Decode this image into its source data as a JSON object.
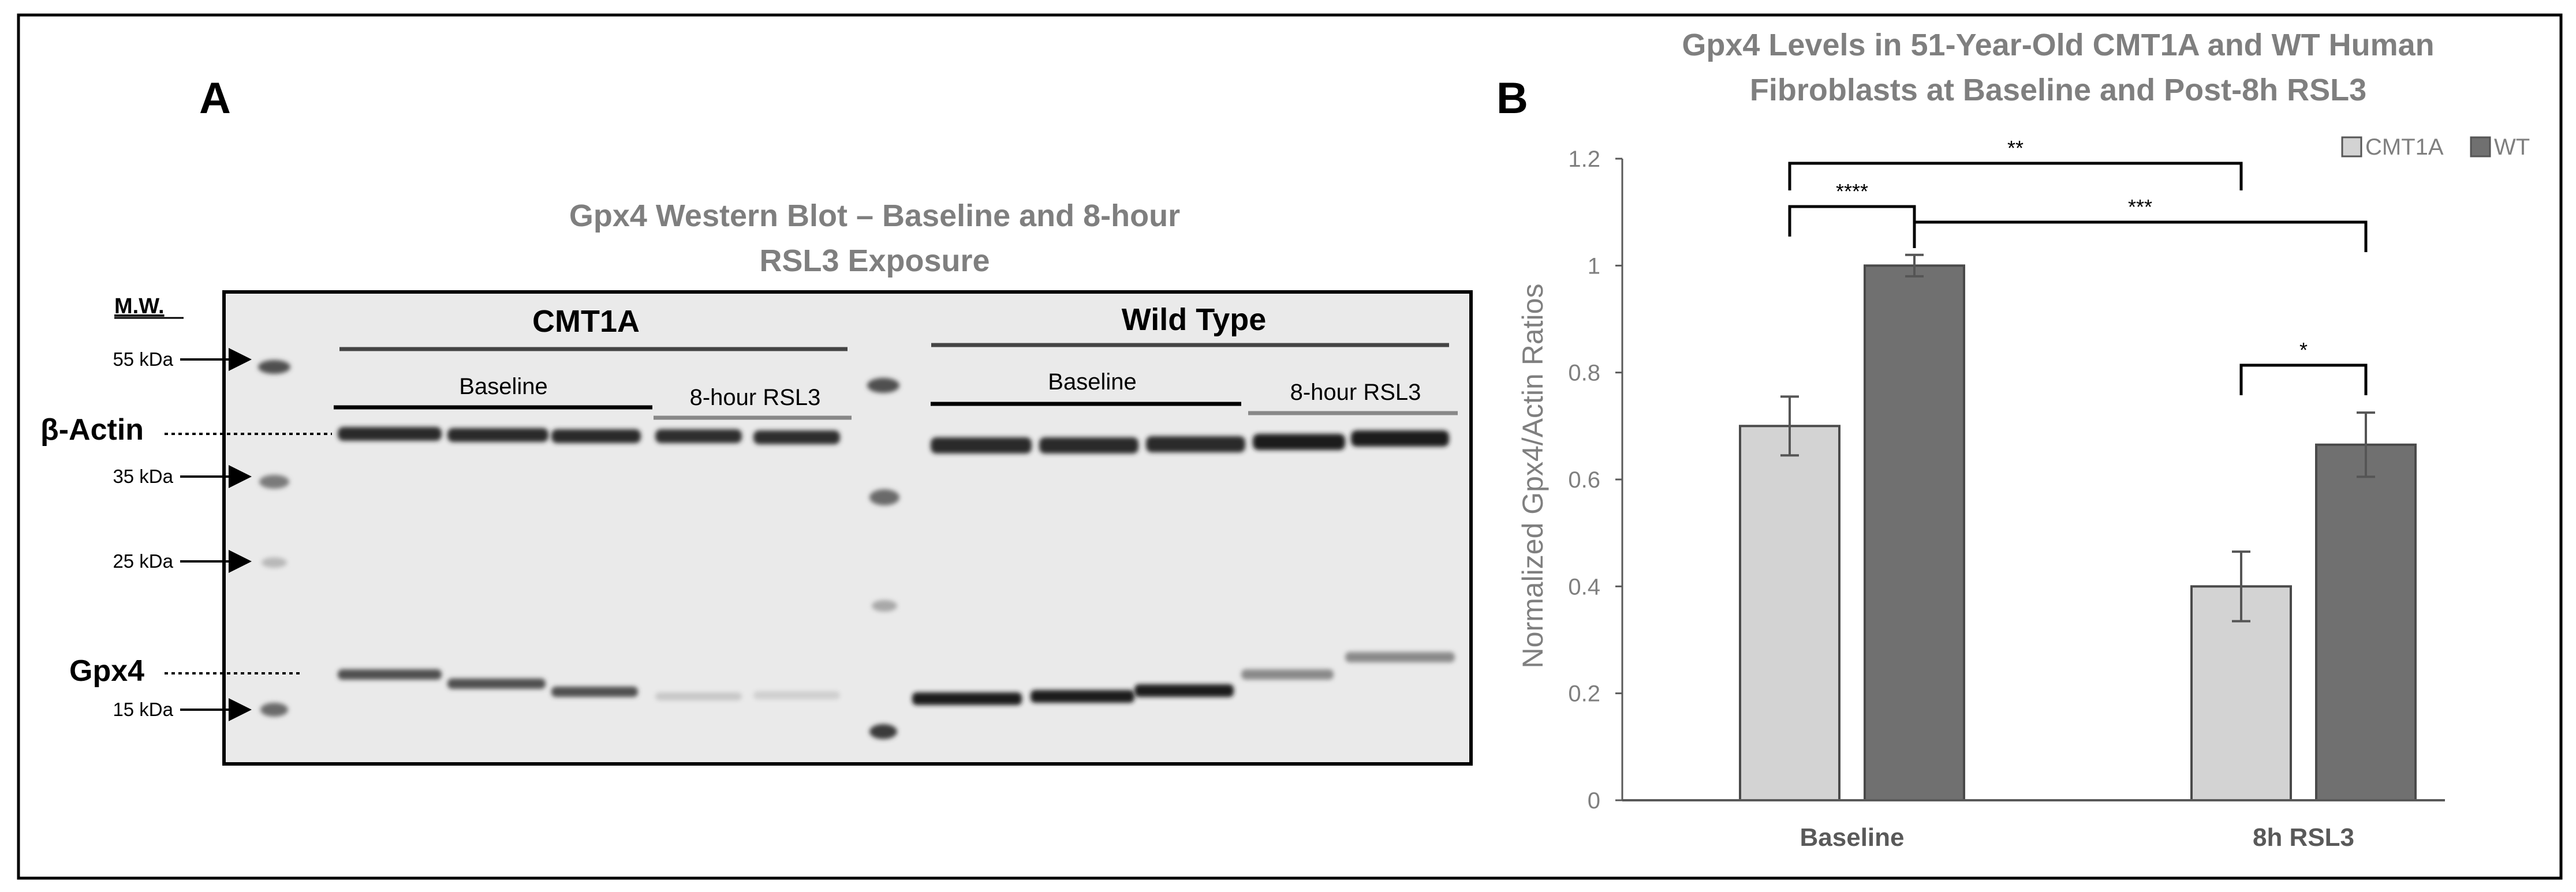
{
  "panel_a": {
    "letter": "A",
    "title_line1": "Gpx4 Western Blot – Baseline and 8-hour",
    "title_line2": "RSL3 Exposure",
    "mw_header": "M.W.",
    "markers": [
      {
        "label": "55 kDa"
      },
      {
        "label": "35 kDa"
      },
      {
        "label": "25 kDa"
      },
      {
        "label": "15 kDa"
      }
    ],
    "band_labels": {
      "actin": "β-Actin",
      "gpx4": "Gpx4"
    },
    "groups": [
      {
        "name": "CMT1A",
        "conditions": [
          "Baseline",
          "8-hour RSL3"
        ]
      },
      {
        "name": "Wild Type",
        "conditions": [
          "Baseline",
          "8-hour RSL3"
        ]
      }
    ]
  },
  "chart_data": {
    "type": "bar",
    "title_line1": "Gpx4 Levels in 51-Year-Old CMT1A and WT Human",
    "title_line2": "Fibroblasts at Baseline and Post-8h RSL3",
    "panel_letter": "B",
    "categories": [
      "Baseline",
      "8h RSL3"
    ],
    "series": [
      {
        "name": "CMT1A",
        "color": "#d3d3d3",
        "values": [
          0.7,
          0.4
        ],
        "errors": [
          0.055,
          0.065
        ]
      },
      {
        "name": "WT",
        "color": "#707070",
        "values": [
          1.0,
          0.665
        ],
        "errors": [
          0.02,
          0.06
        ]
      }
    ],
    "ylabel": "Normalized Gpx4/Actin Ratios",
    "xlabel": "",
    "ylim": [
      0,
      1.2
    ],
    "yticks": [
      "0",
      "0.2",
      "0.4",
      "0.6",
      "0.8",
      "1",
      "1.2"
    ],
    "ytick_values": [
      0,
      0.2,
      0.4,
      0.6,
      0.8,
      1.0,
      1.2
    ],
    "legend_position": "top-right",
    "significance": [
      {
        "label": "****",
        "from": [
          0,
          0
        ],
        "to": [
          0,
          1
        ]
      },
      {
        "label": "**",
        "from": [
          0,
          0
        ],
        "to": [
          1,
          0
        ]
      },
      {
        "label": "***",
        "from": [
          0,
          1
        ],
        "to": [
          1,
          1
        ]
      },
      {
        "label": "*",
        "from": [
          1,
          0
        ],
        "to": [
          1,
          1
        ]
      }
    ]
  },
  "colors": {
    "text_gray": "#7f7f7f",
    "axis": "#595959",
    "border": "#000000",
    "blot_bg": "#eaeaea"
  }
}
